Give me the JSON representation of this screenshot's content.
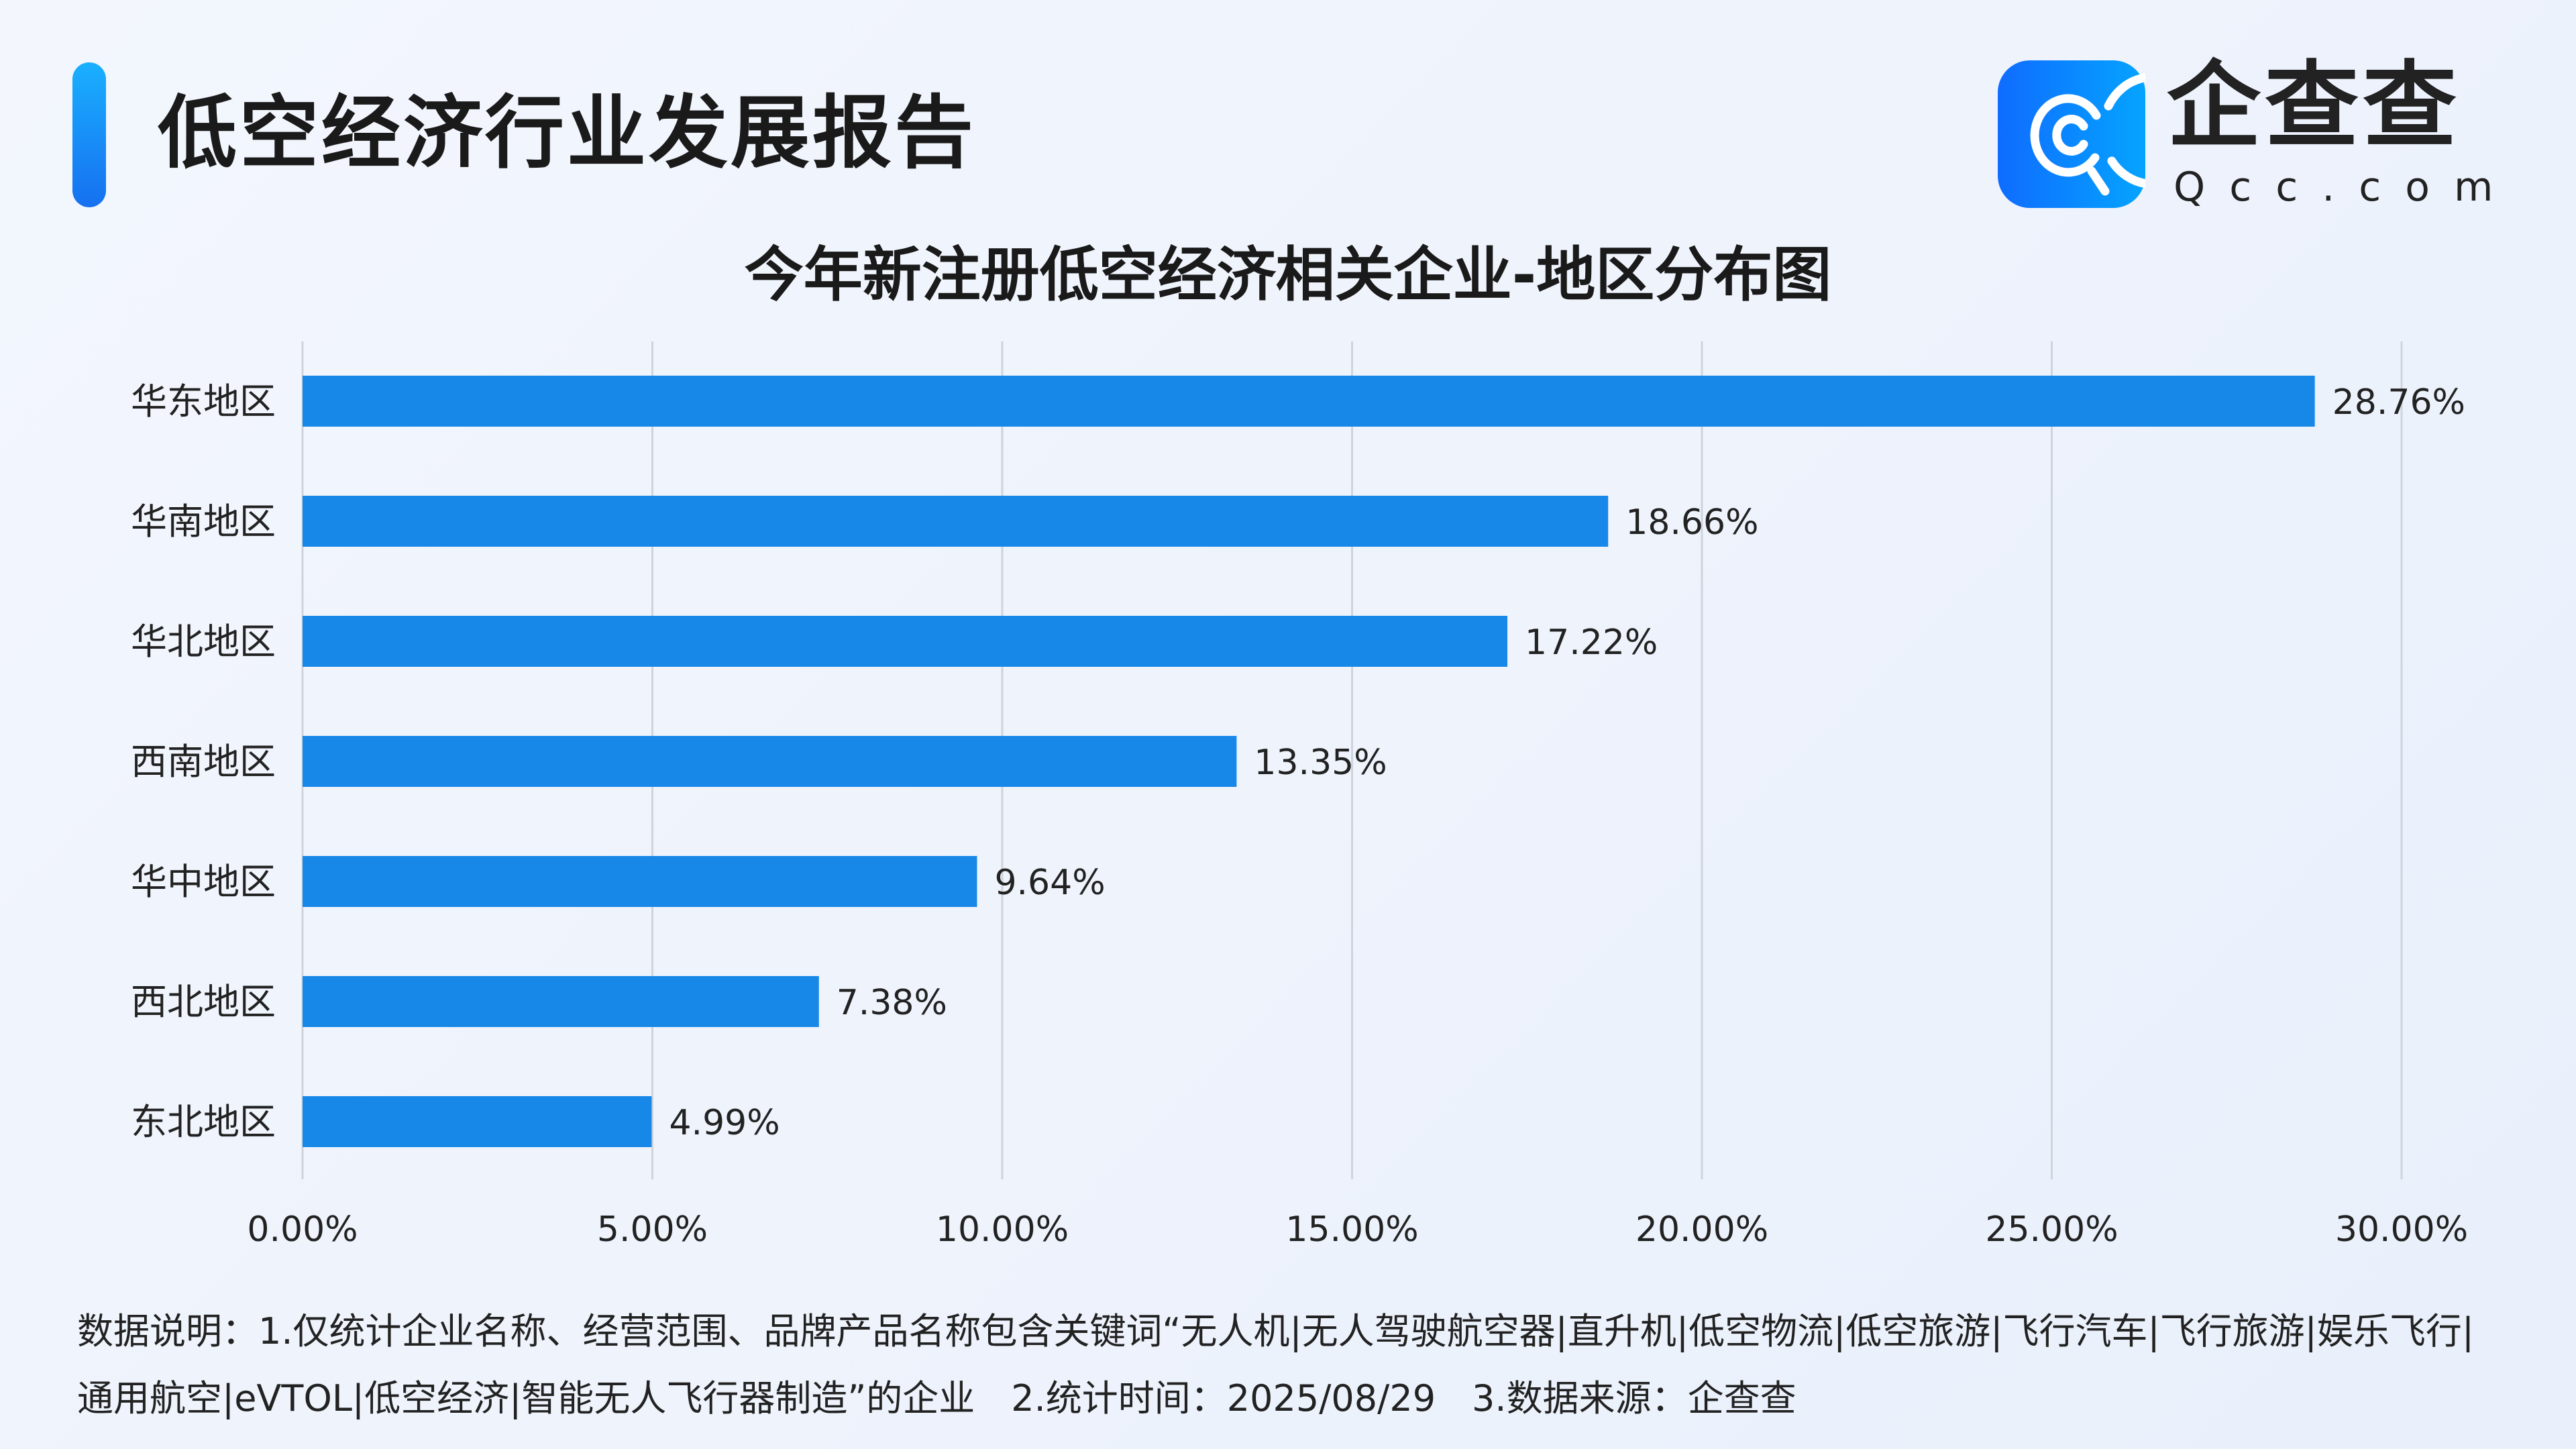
{
  "header": {
    "title": "低空经济行业发展报告",
    "logo_cn": "企查查",
    "logo_en": "Qcc.com"
  },
  "chart_data": {
    "type": "bar",
    "orientation": "horizontal",
    "title": "今年新注册低空经济相关企业-地区分布图",
    "categories": [
      "华东地区",
      "华南地区",
      "华北地区",
      "西南地区",
      "华中地区",
      "西北地区",
      "东北地区"
    ],
    "values": [
      28.76,
      18.66,
      17.22,
      13.35,
      9.64,
      7.38,
      4.99
    ],
    "value_labels": [
      "28.76%",
      "18.66%",
      "17.22%",
      "13.35%",
      "9.64%",
      "7.38%",
      "4.99%"
    ],
    "xlim": [
      0,
      30
    ],
    "xticks": [
      0,
      5,
      10,
      15,
      20,
      25,
      30
    ],
    "xtick_labels": [
      "0.00%",
      "5.00%",
      "10.00%",
      "15.00%",
      "20.00%",
      "25.00%",
      "30.00%"
    ],
    "xlabel": "",
    "ylabel": "",
    "grid": "vertical",
    "legend": "none",
    "bar_color": "#1788e8"
  },
  "footer": {
    "note": "数据说明：1.仅统计企业名称、经营范围、品牌产品名称包含关键词“无人机|无人驾驶航空器|直升机|低空物流|低空旅游|飞行汽车|飞行旅游|娱乐飞行|通用航空|eVTOL|低空经济|智能无人飞行器制造”的企业　2.统计时间：2025/08/29　3.数据来源：企查查"
  }
}
